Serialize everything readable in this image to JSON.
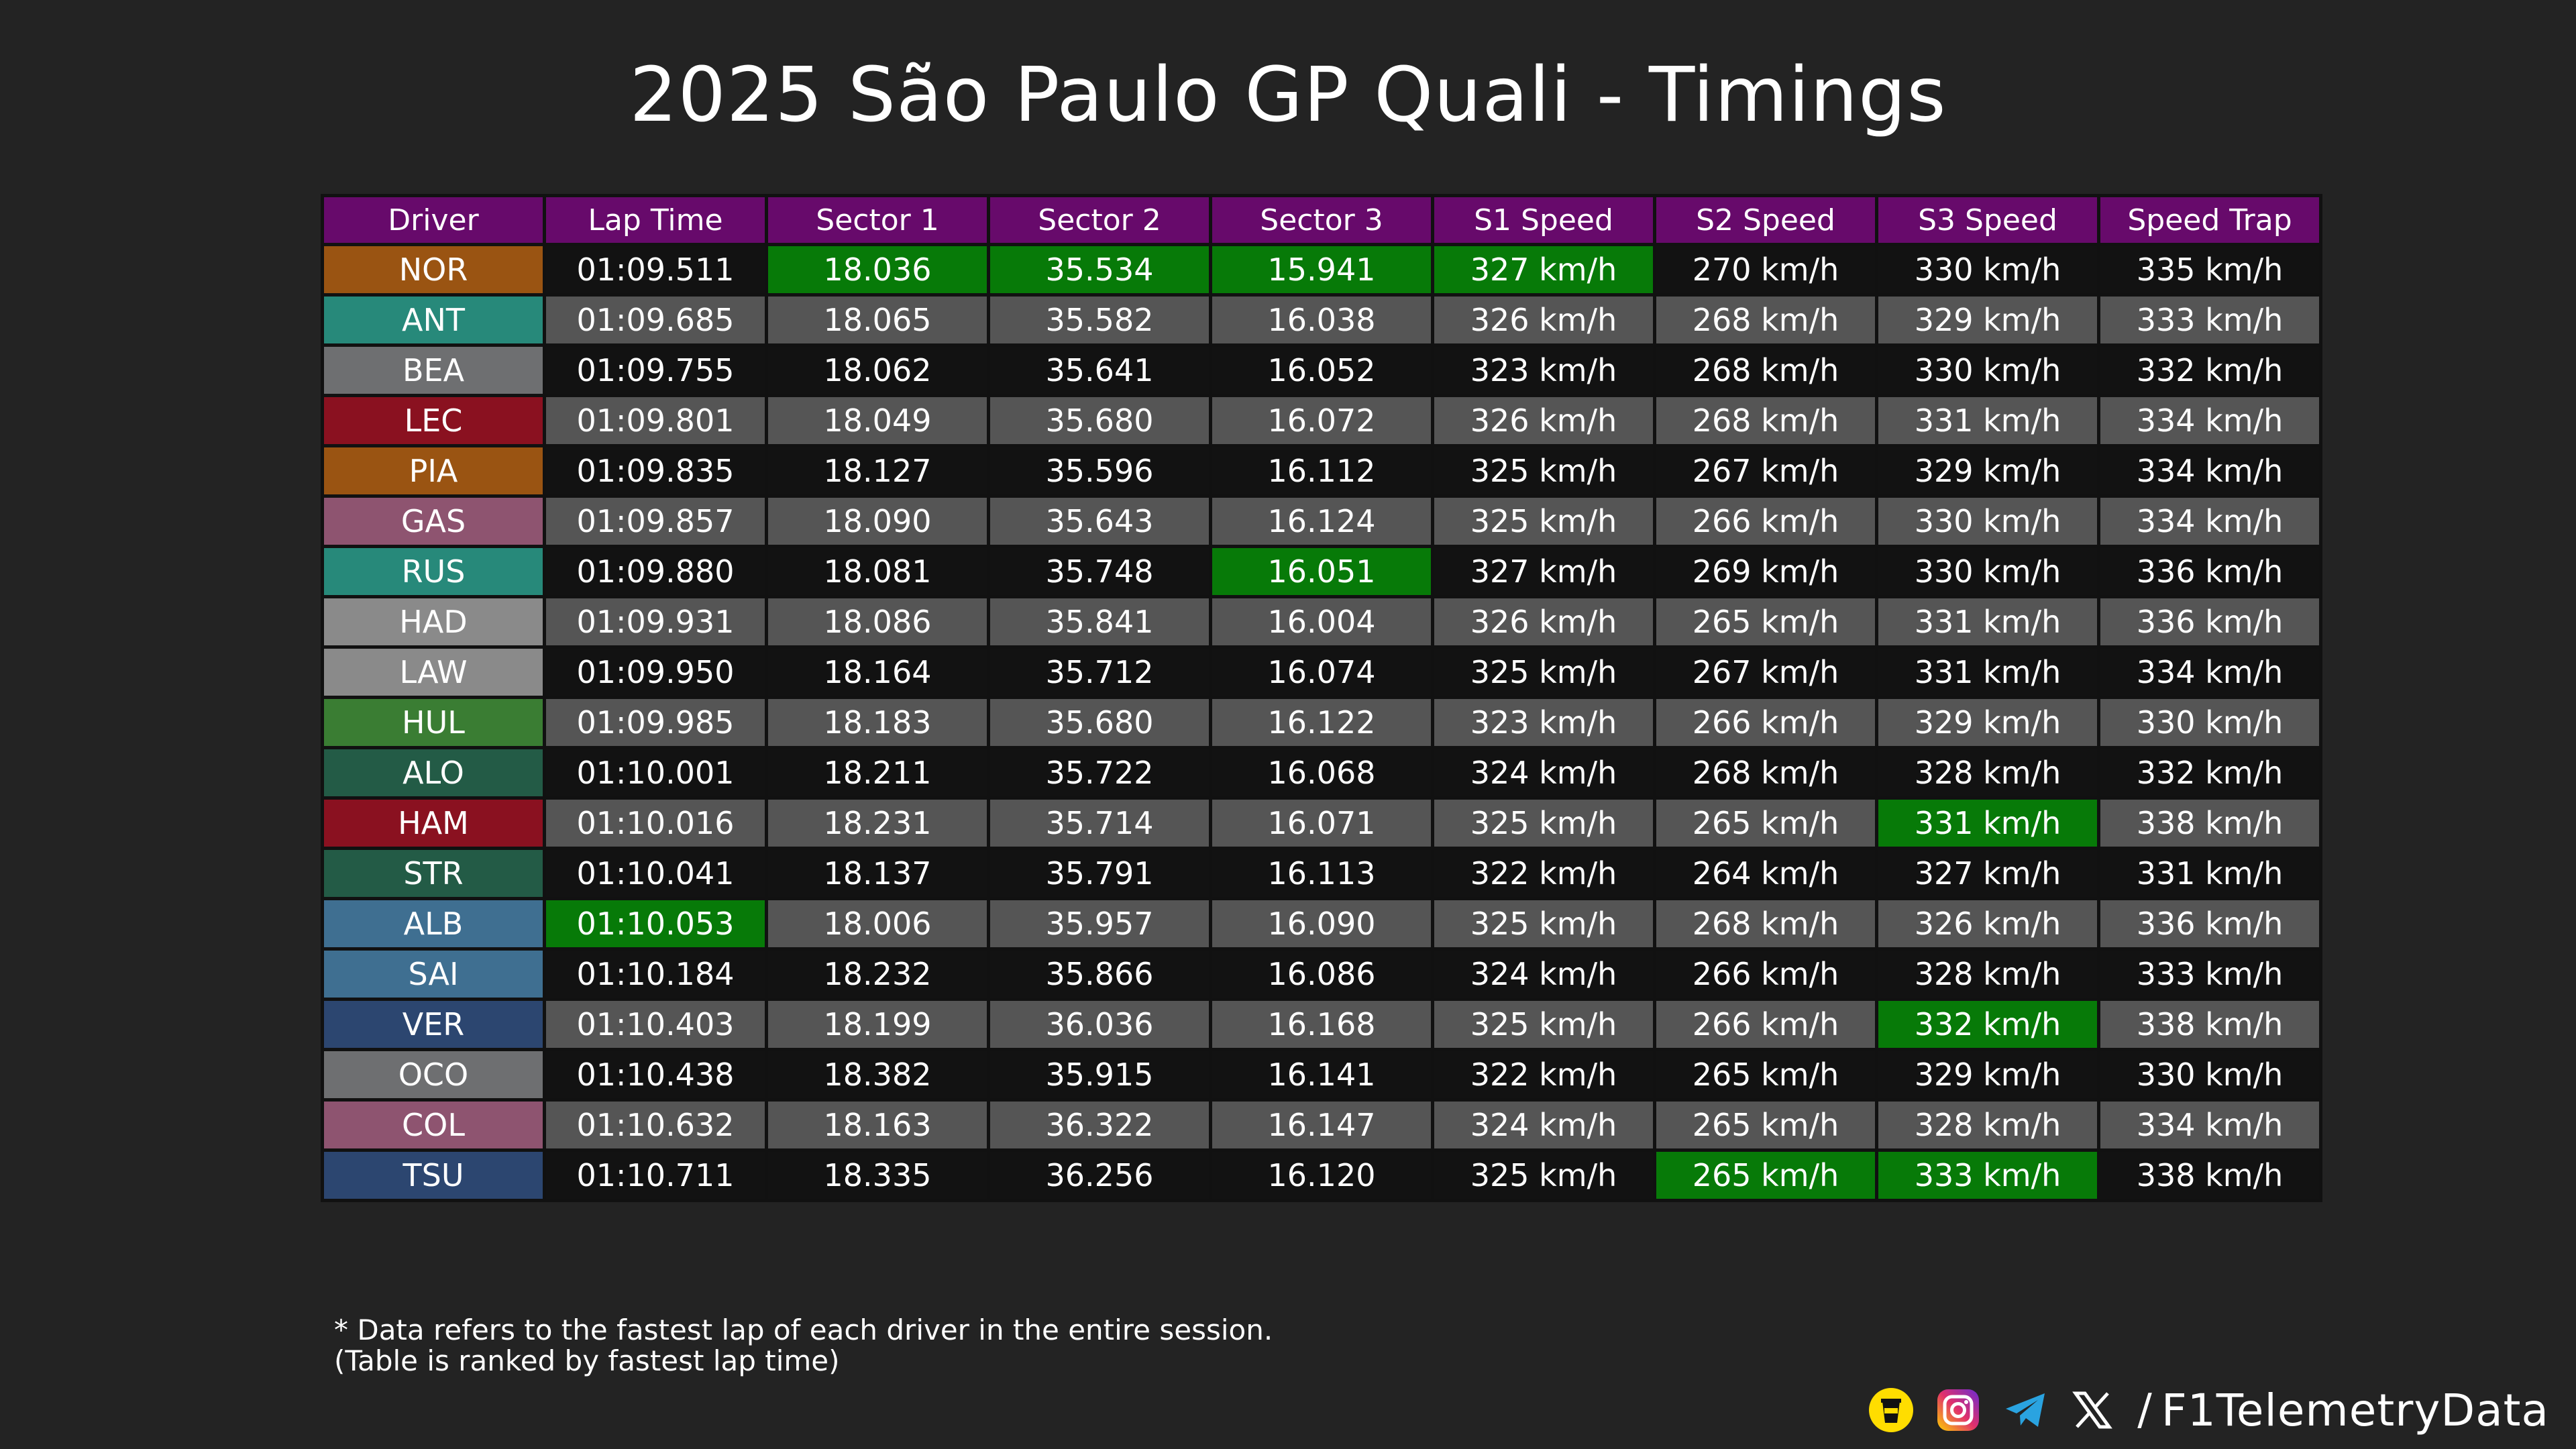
{
  "title": "2025 São Paulo GP Quali - Timings",
  "watermark": "@F1TelemetryData",
  "colors": {
    "header": "#670a6b",
    "best": "#077a08",
    "row_dark": "#121212",
    "row_light": "#555555"
  },
  "chart_data": {
    "type": "table",
    "columns": [
      "Driver",
      "Lap Time",
      "Sector 1",
      "Sector 2",
      "Sector 3",
      "S1 Speed",
      "S2 Speed",
      "S3 Speed",
      "Speed Trap"
    ],
    "rows": [
      {
        "driver": "NOR",
        "team_color": "#9a5412",
        "cells": [
          "01:09.511",
          "18.036",
          "35.534",
          "15.941",
          "327 km/h",
          "270 km/h",
          "330 km/h",
          "335 km/h"
        ],
        "best": [
          2,
          3,
          4,
          5
        ]
      },
      {
        "driver": "ANT",
        "team_color": "#27897a",
        "cells": [
          "01:09.685",
          "18.065",
          "35.582",
          "16.038",
          "326 km/h",
          "268 km/h",
          "329 km/h",
          "333 km/h"
        ],
        "best": []
      },
      {
        "driver": "BEA",
        "team_color": "#6e6f71",
        "cells": [
          "01:09.755",
          "18.062",
          "35.641",
          "16.052",
          "323 km/h",
          "268 km/h",
          "330 km/h",
          "332 km/h"
        ],
        "best": []
      },
      {
        "driver": "LEC",
        "team_color": "#8a1120",
        "cells": [
          "01:09.801",
          "18.049",
          "35.680",
          "16.072",
          "326 km/h",
          "268 km/h",
          "331 km/h",
          "334 km/h"
        ],
        "best": []
      },
      {
        "driver": "PIA",
        "team_color": "#9a5412",
        "cells": [
          "01:09.835",
          "18.127",
          "35.596",
          "16.112",
          "325 km/h",
          "267 km/h",
          "329 km/h",
          "334 km/h"
        ],
        "best": []
      },
      {
        "driver": "GAS",
        "team_color": "#8e5470",
        "cells": [
          "01:09.857",
          "18.090",
          "35.643",
          "16.124",
          "325 km/h",
          "266 km/h",
          "330 km/h",
          "334 km/h"
        ],
        "best": []
      },
      {
        "driver": "RUS",
        "team_color": "#27897a",
        "cells": [
          "01:09.880",
          "18.081",
          "35.748",
          "16.051",
          "327 km/h",
          "269 km/h",
          "330 km/h",
          "336 km/h"
        ],
        "best": [
          4
        ]
      },
      {
        "driver": "HAD",
        "team_color": "#8a8a8a",
        "cells": [
          "01:09.931",
          "18.086",
          "35.841",
          "16.004",
          "326 km/h",
          "265 km/h",
          "331 km/h",
          "336 km/h"
        ],
        "best": []
      },
      {
        "driver": "LAW",
        "team_color": "#8a8a8a",
        "cells": [
          "01:09.950",
          "18.164",
          "35.712",
          "16.074",
          "325 km/h",
          "267 km/h",
          "331 km/h",
          "334 km/h"
        ],
        "best": []
      },
      {
        "driver": "HUL",
        "team_color": "#3a7d33",
        "cells": [
          "01:09.985",
          "18.183",
          "35.680",
          "16.122",
          "323 km/h",
          "266 km/h",
          "329 km/h",
          "330 km/h"
        ],
        "best": []
      },
      {
        "driver": "ALO",
        "team_color": "#235b46",
        "cells": [
          "01:10.001",
          "18.211",
          "35.722",
          "16.068",
          "324 km/h",
          "268 km/h",
          "328 km/h",
          "332 km/h"
        ],
        "best": []
      },
      {
        "driver": "HAM",
        "team_color": "#8a1120",
        "cells": [
          "01:10.016",
          "18.231",
          "35.714",
          "16.071",
          "325 km/h",
          "265 km/h",
          "331 km/h",
          "338 km/h"
        ],
        "best": [
          7
        ]
      },
      {
        "driver": "STR",
        "team_color": "#235b46",
        "cells": [
          "01:10.041",
          "18.137",
          "35.791",
          "16.113",
          "322 km/h",
          "264 km/h",
          "327 km/h",
          "331 km/h"
        ],
        "best": []
      },
      {
        "driver": "ALB",
        "team_color": "#3f6f91",
        "cells": [
          "01:10.053",
          "18.006",
          "35.957",
          "16.090",
          "325 km/h",
          "268 km/h",
          "326 km/h",
          "336 km/h"
        ],
        "best": [
          1
        ]
      },
      {
        "driver": "SAI",
        "team_color": "#3f6f91",
        "cells": [
          "01:10.184",
          "18.232",
          "35.866",
          "16.086",
          "324 km/h",
          "266 km/h",
          "328 km/h",
          "333 km/h"
        ],
        "best": []
      },
      {
        "driver": "VER",
        "team_color": "#2c4670",
        "cells": [
          "01:10.403",
          "18.199",
          "36.036",
          "16.168",
          "325 km/h",
          "266 km/h",
          "332 km/h",
          "338 km/h"
        ],
        "best": [
          7
        ]
      },
      {
        "driver": "OCO",
        "team_color": "#6e6f71",
        "cells": [
          "01:10.438",
          "18.382",
          "35.915",
          "16.141",
          "322 km/h",
          "265 km/h",
          "329 km/h",
          "330 km/h"
        ],
        "best": []
      },
      {
        "driver": "COL",
        "team_color": "#8e5470",
        "cells": [
          "01:10.632",
          "18.163",
          "36.322",
          "16.147",
          "324 km/h",
          "265 km/h",
          "328 km/h",
          "334 km/h"
        ],
        "best": []
      },
      {
        "driver": "TSU",
        "team_color": "#2c4670",
        "cells": [
          "01:10.711",
          "18.335",
          "36.256",
          "16.120",
          "325 km/h",
          "265 km/h",
          "333 km/h",
          "338 km/h"
        ],
        "best": [
          6,
          7
        ]
      }
    ]
  },
  "footnote": {
    "line1": "* Data refers to the fastest lap of each driver in the entire session.",
    "line2": "(Table is ranked by fastest lap time)"
  },
  "social": {
    "icons": [
      "buymeacoffee-icon",
      "instagram-icon",
      "telegram-icon",
      "x-icon"
    ],
    "separator": "/",
    "handle": "F1TelemetryData"
  }
}
